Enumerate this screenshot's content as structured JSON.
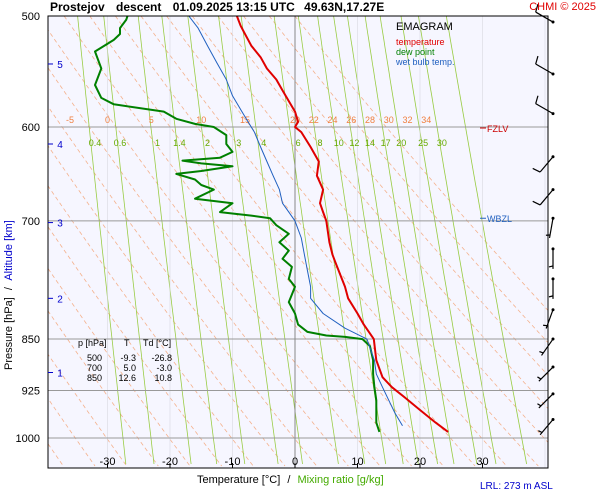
{
  "header": {
    "station": "Prostejov",
    "mode": "descent",
    "datetime": "01.09.2025 13:15 UTC",
    "coords": "49.63N,17.27E",
    "credit": "CHMI © 2025"
  },
  "legend": {
    "title": "EMAGRAM",
    "temperature": "temperature",
    "dew_point": "dew point",
    "wet_bulb": "wet bulb temp."
  },
  "labels": {
    "ylabel_pressure": "Pressure [hPa]",
    "ylabel_sep": "/",
    "ylabel_altitude": "Altitude [km]",
    "xlabel_temp": "Temperature [°C]",
    "xlabel_sep": "/",
    "xlabel_mix": "Mixing ratio [g/kg]",
    "fzlv": "FZLV",
    "wbzl": "WBZL",
    "lrl": "LRL: 273 m ASL"
  },
  "table": {
    "headers": [
      "p [hPa]",
      "T",
      "Td [°C]"
    ],
    "rows": [
      [
        "500",
        "-9.3",
        "-26.8"
      ],
      [
        "700",
        "5.0",
        "-3.0"
      ],
      [
        "850",
        "12.6",
        "10.8"
      ]
    ]
  },
  "colors": {
    "temperature": "#e00000",
    "dew_point": "#008000",
    "wet_bulb": "#2060c0",
    "mixing_ratio": "#99cc44",
    "dry_adiabat": "#f4a070",
    "credit": "#e00000",
    "plot_bg": "#f6f6ff"
  },
  "chart_data": {
    "type": "line",
    "title": "EMAGRAM",
    "xlabel": "Temperature [°C] / Mixing ratio [g/kg]",
    "ylabel": "Pressure [hPa] / Altitude [km]",
    "xlim": [
      -40,
      40
    ],
    "ylim": [
      1000,
      500
    ],
    "y_scale": "log",
    "x_ticks": [
      -30,
      -20,
      -10,
      0,
      10,
      20,
      30
    ],
    "y_ticks": [
      500,
      600,
      700,
      850,
      925,
      1000
    ],
    "altitude_ticks": [
      {
        "km": 1,
        "p": 898
      },
      {
        "km": 2,
        "p": 795
      },
      {
        "km": 3,
        "p": 702
      },
      {
        "km": 4,
        "p": 617
      },
      {
        "km": 5,
        "p": 541
      }
    ],
    "theta_labels": [
      "-5",
      "0",
      "5",
      "10",
      "15",
      "20",
      "22",
      "24",
      "26",
      "28",
      "30",
      "32",
      "34"
    ],
    "theta_label_temps": [
      -36,
      -30,
      -23,
      -15,
      -8,
      0,
      3,
      6,
      9,
      12,
      15,
      18,
      21
    ],
    "mixing_ratio_labels": [
      "0.4",
      "0.6",
      "1",
      "1.4",
      "2",
      "3",
      "4",
      "6",
      "8",
      "10",
      "12",
      "14",
      "17",
      "20",
      "25",
      "30"
    ],
    "mixing_ratio_label_temps": [
      -32,
      -28,
      -22,
      -18.5,
      -14,
      -9,
      -5,
      0.5,
      4,
      7,
      9.5,
      12,
      14.5,
      17,
      20.5,
      23.5
    ],
    "series": [
      {
        "name": "temperature",
        "points": [
          [
            24.5,
            990
          ],
          [
            22.5,
            975
          ],
          [
            20,
            955
          ],
          [
            17.5,
            935
          ],
          [
            15.5,
            920
          ],
          [
            14,
            905
          ],
          [
            13,
            880
          ],
          [
            12.6,
            850
          ],
          [
            11,
            830
          ],
          [
            10,
            815
          ],
          [
            8.5,
            795
          ],
          [
            8,
            780
          ],
          [
            7.5,
            770
          ],
          [
            6.5,
            750
          ],
          [
            6,
            740
          ],
          [
            5.5,
            725
          ],
          [
            5,
            700
          ],
          [
            4.5,
            690
          ],
          [
            4,
            680
          ],
          [
            4.5,
            665
          ],
          [
            3.5,
            650
          ],
          [
            3.8,
            635
          ],
          [
            2.5,
            620
          ],
          [
            1,
            605
          ],
          [
            0,
            600
          ],
          [
            0.5,
            595
          ],
          [
            0,
            585
          ],
          [
            -1,
            575
          ],
          [
            -2,
            565
          ],
          [
            -3,
            555
          ],
          [
            -4.5,
            545
          ],
          [
            -5.5,
            535
          ],
          [
            -7,
            525
          ],
          [
            -8,
            515
          ],
          [
            -8.7,
            508
          ],
          [
            -9.3,
            500
          ]
        ]
      },
      {
        "name": "dew point",
        "points": [
          [
            13.5,
            990
          ],
          [
            13,
            975
          ],
          [
            13,
            955
          ],
          [
            13,
            940
          ],
          [
            12.7,
            920
          ],
          [
            12.5,
            900
          ],
          [
            12.5,
            880
          ],
          [
            12,
            860
          ],
          [
            10.8,
            850
          ],
          [
            8,
            847
          ],
          [
            5,
            845
          ],
          [
            2,
            840
          ],
          [
            0.5,
            830
          ],
          [
            0,
            815
          ],
          [
            -1,
            800
          ],
          [
            -0.5,
            790
          ],
          [
            0,
            780
          ],
          [
            -1,
            770
          ],
          [
            -0.5,
            755
          ],
          [
            -2,
            745
          ],
          [
            -1,
            735
          ],
          [
            -2.5,
            725
          ],
          [
            -1,
            715
          ],
          [
            -3,
            705
          ],
          [
            -4,
            697
          ],
          [
            -7,
            694
          ],
          [
            -12,
            690
          ],
          [
            -10,
            680
          ],
          [
            -16,
            675
          ],
          [
            -13,
            665
          ],
          [
            -15,
            660
          ],
          [
            -16,
            654
          ],
          [
            -19,
            648
          ],
          [
            -15,
            645
          ],
          [
            -10,
            640
          ],
          [
            -15,
            637
          ],
          [
            -18,
            634
          ],
          [
            -12,
            631
          ],
          [
            -10,
            625
          ],
          [
            -11,
            617
          ],
          [
            -11,
            608
          ],
          [
            -13,
            600
          ],
          [
            -16,
            597
          ],
          [
            -19,
            592
          ],
          [
            -21,
            585
          ],
          [
            -29,
            578
          ],
          [
            -31,
            572
          ],
          [
            -32,
            560
          ],
          [
            -31,
            545
          ],
          [
            -32,
            530
          ],
          [
            -29,
            520
          ],
          [
            -28,
            515
          ],
          [
            -28,
            510
          ],
          [
            -27,
            503
          ],
          [
            -26.8,
            500
          ]
        ]
      },
      {
        "name": "wet bulb temp.",
        "points": [
          [
            17.2,
            980
          ],
          [
            16,
            960
          ],
          [
            15,
            940
          ],
          [
            14,
            920
          ],
          [
            13,
            900
          ],
          [
            12.7,
            880
          ],
          [
            11.5,
            850
          ],
          [
            8,
            835
          ],
          [
            4.5,
            815
          ],
          [
            2.5,
            795
          ],
          [
            2.5,
            780
          ],
          [
            2,
            760
          ],
          [
            1.5,
            740
          ],
          [
            1,
            720
          ],
          [
            0,
            700
          ],
          [
            -1,
            690
          ],
          [
            -2,
            680
          ],
          [
            -2.5,
            665
          ],
          [
            -3.5,
            650
          ],
          [
            -4.5,
            635
          ],
          [
            -5.5,
            620
          ],
          [
            -6.5,
            605
          ],
          [
            -7.5,
            595
          ],
          [
            -8.5,
            585
          ],
          [
            -10,
            570
          ],
          [
            -11,
            555
          ],
          [
            -12.5,
            540
          ],
          [
            -14,
            525
          ],
          [
            -15.5,
            510
          ],
          [
            -17,
            500
          ]
        ]
      }
    ],
    "levels": [
      {
        "name": "FZLV",
        "p": 601
      },
      {
        "name": "WBZL",
        "p": 697
      }
    ],
    "wind_barbs": [
      {
        "p": 505,
        "dir": 300,
        "speed_kt": 10
      },
      {
        "p": 550,
        "dir": 300,
        "speed_kt": 10
      },
      {
        "p": 587,
        "dir": 300,
        "speed_kt": 10
      },
      {
        "p": 630,
        "dir": 220,
        "speed_kt": 10
      },
      {
        "p": 665,
        "dir": 220,
        "speed_kt": 10
      },
      {
        "p": 697,
        "dir": 190,
        "speed_kt": 5
      },
      {
        "p": 733,
        "dir": 180,
        "speed_kt": 5
      },
      {
        "p": 770,
        "dir": 180,
        "speed_kt": 5
      },
      {
        "p": 810,
        "dir": 200,
        "speed_kt": 5
      },
      {
        "p": 850,
        "dir": 215,
        "speed_kt": 5
      },
      {
        "p": 890,
        "dir": 225,
        "speed_kt": 5
      },
      {
        "p": 930,
        "dir": 225,
        "speed_kt": 5
      },
      {
        "p": 970,
        "dir": 220,
        "speed_kt": 5
      }
    ]
  }
}
